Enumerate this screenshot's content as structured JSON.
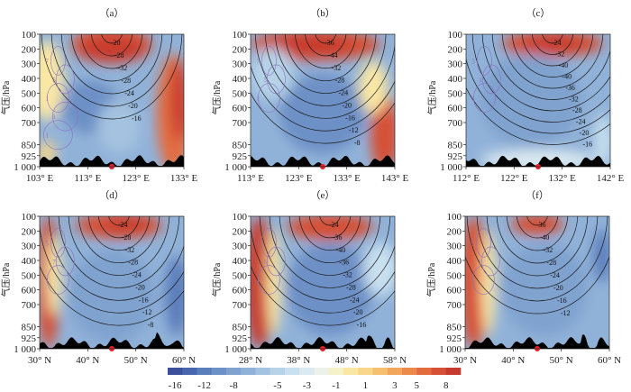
{
  "chart_data": [
    {
      "type": "heatmap",
      "panel": "（a）",
      "ylabel": "气压/hPa",
      "yticks": [
        "100",
        "200",
        "300",
        "400",
        "500",
        "600",
        "700",
        "850",
        "925",
        "1 000"
      ],
      "xticks": [
        "103° E",
        "113° E",
        "123° E",
        "133° E"
      ],
      "contour_labels": [
        "-20",
        "-28",
        "-32",
        "-28",
        "-24",
        "-20",
        "-16"
      ],
      "purple_labels": [
        "7",
        "5",
        "1",
        "1",
        "1"
      ]
    },
    {
      "type": "heatmap",
      "panel": "（b）",
      "ylabel": "气压/hPa",
      "yticks": [
        "100",
        "200",
        "300",
        "400",
        "500",
        "600",
        "700",
        "850",
        "925",
        "1 000"
      ],
      "xticks": [
        "113° E",
        "123° E",
        "133° E",
        "143° E"
      ],
      "contour_labels": [
        "-36",
        "-44",
        "-32",
        "-28",
        "-24",
        "-20",
        "-16",
        "-12",
        "-8"
      ],
      "purple_labels": [
        "7",
        "5",
        "1"
      ]
    },
    {
      "type": "heatmap",
      "panel": "（c）",
      "ylabel": "气压/hPa",
      "yticks": [
        "100",
        "200",
        "300",
        "400",
        "500",
        "600",
        "700",
        "850",
        "925",
        "1 000"
      ],
      "xticks": [
        "112° E",
        "122° E",
        "132° E",
        "142° E"
      ],
      "contour_labels": [
        "-24",
        "-32",
        "-40",
        "-40",
        "-36",
        "-32",
        "-28",
        "-24",
        "-20",
        "-16"
      ],
      "purple_labels": [
        "5",
        "1",
        "1"
      ]
    },
    {
      "type": "heatmap",
      "panel": "（d）",
      "ylabel": "气压/hPa",
      "yticks": [
        "100",
        "200",
        "300",
        "400",
        "500",
        "600",
        "700",
        "850",
        "925",
        "1 000"
      ],
      "xticks": [
        "30° N",
        "40° N",
        "50° N",
        "60° N"
      ],
      "contour_labels": [
        "-24",
        "-28",
        "-32",
        "-28",
        "-24",
        "-20",
        "-16",
        "-12",
        "-8"
      ],
      "purple_labels": [
        "5",
        "7",
        "1"
      ]
    },
    {
      "type": "heatmap",
      "panel": "（e）",
      "ylabel": "气压/hPa",
      "yticks": [
        "100",
        "200",
        "300",
        "400",
        "500",
        "600",
        "700",
        "850",
        "925",
        "1 000"
      ],
      "xticks": [
        "28° N",
        "38° N",
        "48° N",
        "58° N"
      ],
      "contour_labels": [
        "-24",
        "-36",
        "-40",
        "-36",
        "-32",
        "-28",
        "-24",
        "-20",
        "-16"
      ],
      "purple_labels": [
        "1",
        "5",
        "1"
      ]
    },
    {
      "type": "heatmap",
      "panel": "（f）",
      "ylabel": "气压/hPa",
      "yticks": [
        "100",
        "200",
        "300",
        "400",
        "500",
        "600",
        "700",
        "850",
        "925",
        "1 000"
      ],
      "xticks": [
        "30° N",
        "40° N",
        "50° N",
        "60° N"
      ],
      "contour_labels": [
        "-36",
        "-40",
        "-32",
        "-28",
        "-24",
        "-20",
        "-16",
        "-12"
      ],
      "purple_labels": [
        "5",
        "1",
        "1"
      ]
    }
  ],
  "colorbar": {
    "tick_labels": [
      "-16",
      "-12",
      "-8",
      "-5",
      "-3",
      "-1",
      "1",
      "3",
      "5",
      "8"
    ],
    "colors": [
      "#3b4f9c",
      "#4866ad",
      "#5a7dbb",
      "#6d90c6",
      "#7fa2cf",
      "#91b2d8",
      "#a4c3e0",
      "#b6d3e8",
      "#c8e0ef",
      "#dbeaf1",
      "#ecf2ea",
      "#f6f2c8",
      "#fae7a4",
      "#f8d78a",
      "#f5c070",
      "#f1a65c",
      "#ec8a4c",
      "#e36c3f",
      "#d65036",
      "#c73a2f"
    ]
  },
  "colors": {
    "terrain": "#000000",
    "marker": "#e8212b",
    "contour": "#1a1a1a",
    "purple_contour": "#8a6fc0"
  }
}
